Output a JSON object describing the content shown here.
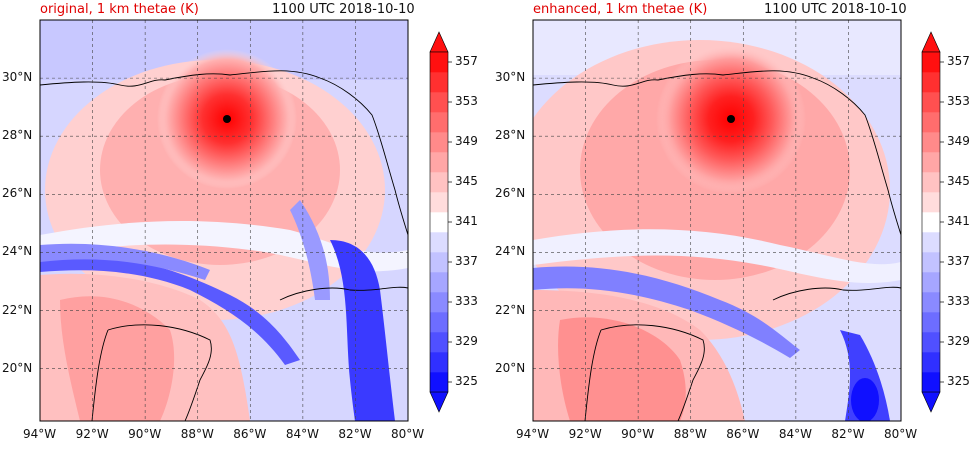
{
  "panels": [
    {
      "title_left": "original, 1 km thetae (K)",
      "title_right": "1100 UTC 2018-10-10"
    },
    {
      "title_left": "enhanced, 1 km thetae (K)",
      "title_right": "1100 UTC 2018-10-10"
    }
  ],
  "lon_ticks": [
    "94°W",
    "92°W",
    "90°W",
    "88°W",
    "86°W",
    "84°W",
    "82°W",
    "80°W"
  ],
  "lat_ticks": [
    "30°N",
    "28°N",
    "26°N",
    "24°N",
    "22°N",
    "20°N"
  ],
  "colorbar": {
    "ticks": [
      "357",
      "353",
      "349",
      "345",
      "341",
      "337",
      "333",
      "329",
      "325"
    ],
    "levels": [
      325,
      327,
      329,
      331,
      333,
      335,
      337,
      339,
      341,
      343,
      345,
      347,
      349,
      351,
      353,
      355,
      357
    ],
    "colors": [
      "#1010ff",
      "#3030ff",
      "#5050ff",
      "#6d6dff",
      "#8a8aff",
      "#a6a6ff",
      "#c2c2ff",
      "#dcdcff",
      "#ffffff",
      "#ffdcdc",
      "#ffc2c2",
      "#ffa6a6",
      "#ff8a8a",
      "#ff6d6d",
      "#ff5050",
      "#ff3030",
      "#ff1010"
    ]
  },
  "chart_data": [
    {
      "type": "heatmap",
      "title": "original, 1 km thetae (K)",
      "variable": "1 km theta-e (K)",
      "time": "1100 UTC 2018-10-10",
      "lon_range": [
        -94,
        -80
      ],
      "lat_range": [
        18.2,
        32
      ],
      "storm_center": {
        "lon": -86.9,
        "lat": 28.7
      },
      "colorbar_range": [
        325,
        357
      ]
    },
    {
      "type": "heatmap",
      "title": "enhanced, 1 km thetae (K)",
      "variable": "1 km theta-e (K)",
      "time": "1100 UTC 2018-10-10",
      "lon_range": [
        -94,
        -80
      ],
      "lat_range": [
        18.2,
        32
      ],
      "storm_center": {
        "lon": -86.1,
        "lat": 28.7
      },
      "colorbar_range": [
        325,
        357
      ]
    }
  ]
}
